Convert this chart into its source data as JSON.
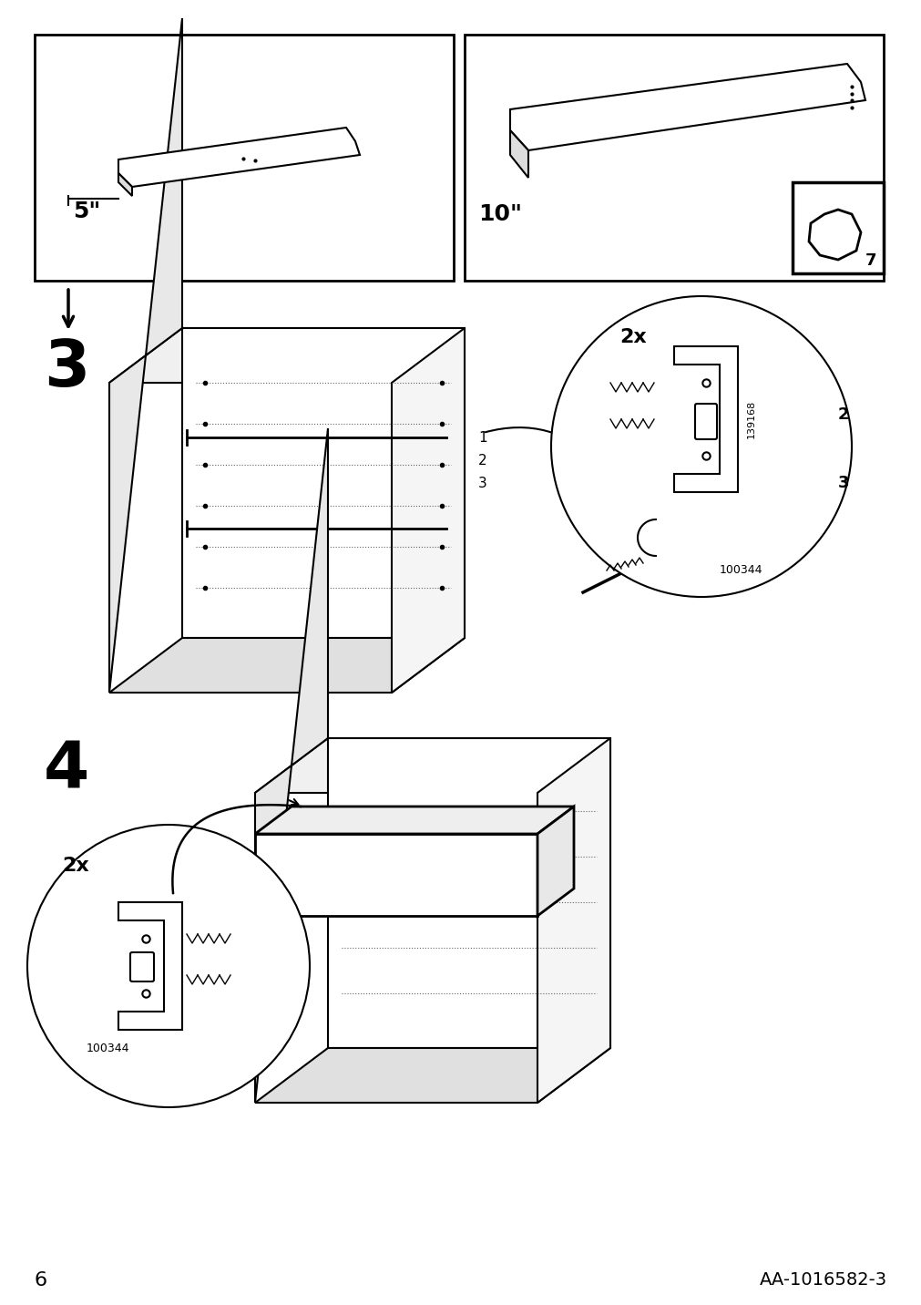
{
  "page_number": "6",
  "doc_number": "AA-1016582-3",
  "background_color": "#ffffff",
  "line_color": "#000000",
  "step3_label": "3",
  "step4_label": "4",
  "part_label_5": "5\"",
  "part_label_10": "10\"",
  "label_2x_step3": "2x",
  "label_2x_step4": "2x",
  "part_num_1": "139168",
  "part_num_2": "100344",
  "ref_num_2": "2",
  "ref_num_3": "3",
  "ref_1": "1",
  "ref_2": "2",
  "ref_3": "3",
  "step_num_7": "7"
}
